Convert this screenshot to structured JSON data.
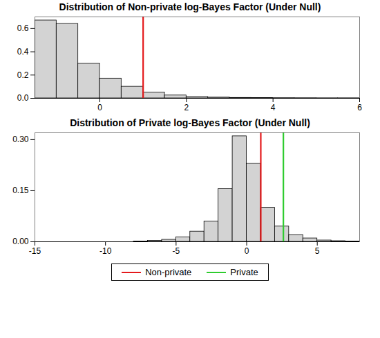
{
  "chart_data": [
    {
      "type": "histogram",
      "title": "Distribution of Non-private log-Bayes Factor (Under Null)",
      "bins": [
        -1.5,
        -1,
        -0.5,
        0,
        0.5,
        1,
        1.5,
        2,
        2.5,
        3,
        3.5,
        4,
        4.5,
        5,
        5.5,
        6
      ],
      "counts": [
        0.67,
        0.64,
        0.3,
        0.17,
        0.1,
        0.05,
        0.025,
        0.012,
        0.007,
        0.004,
        0.003,
        0.002,
        0.0015,
        0.001,
        0.001
      ],
      "color": "#d3d3d3",
      "xlim": [
        -1.5,
        6
      ],
      "xticks": [
        0,
        2,
        4,
        6
      ],
      "ylim": [
        0,
        0.7
      ],
      "yticks": [
        {
          "value": 0,
          "label": "0.0"
        },
        0.2,
        0.4,
        0.6
      ],
      "lines": [
        {
          "name": "Non-private",
          "color": "#e41a1c",
          "x": 1.0
        }
      ]
    },
    {
      "type": "histogram",
      "title": "Distribution of Private log-Bayes Factor (Under Null)",
      "bins": [
        -15,
        -14,
        -13,
        -12,
        -11,
        -10,
        -9,
        -8,
        -7,
        -6,
        -5,
        -4,
        -3,
        -2,
        -1,
        0,
        1,
        2,
        3,
        4,
        5,
        6,
        7,
        8
      ],
      "counts": [
        0,
        0,
        0,
        0,
        0,
        0,
        0,
        0.001,
        0.003,
        0.006,
        0.013,
        0.03,
        0.06,
        0.155,
        0.31,
        0.23,
        0.1,
        0.045,
        0.02,
        0.01,
        0.004,
        0.002,
        0.001
      ],
      "color": "#d3d3d3",
      "xlim": [
        -15,
        8
      ],
      "xticks": [
        -15,
        -10,
        -5,
        0,
        5
      ],
      "ylim": [
        0,
        0.32
      ],
      "yticks": [
        {
          "value": 0,
          "label": "0.00"
        },
        0.15,
        {
          "value": 0.3,
          "label": "0.30"
        }
      ],
      "lines": [
        {
          "name": "Non-private",
          "color": "#e41a1c",
          "x": 1.0
        },
        {
          "name": "Private",
          "color": "#2ecc2e",
          "x": 2.6
        }
      ],
      "legend": "bottom"
    }
  ]
}
